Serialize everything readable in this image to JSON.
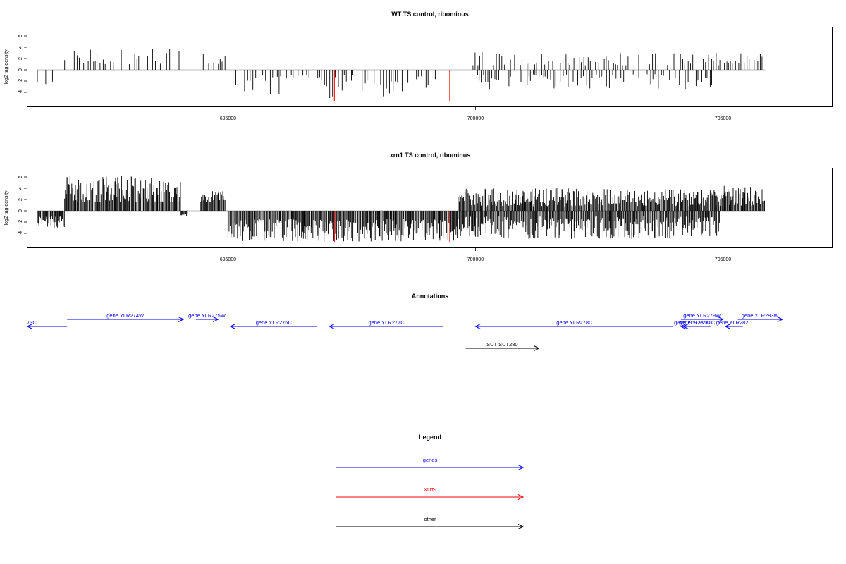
{
  "colors": {
    "gene": "#0000ff",
    "xut": "#ff0000",
    "other": "#000000",
    "positive_bar": "#000000",
    "negative_bar": "#000000",
    "highlight_bar": "#ff0000",
    "baseline": "#bebebe"
  },
  "chart_data": [
    {
      "type": "bar",
      "title": "WT TS control, ribominus",
      "ylabel": "log2 tag density",
      "xlim": [
        690950,
        707200
      ],
      "ylim": [
        -6.5,
        7.5
      ],
      "yticks": [
        -4,
        -2,
        0,
        2,
        4,
        6
      ],
      "xticks": [
        695000,
        700000,
        705000
      ],
      "xtick_labels": [
        "695000",
        "700000",
        "705000"
      ],
      "density": "sparse",
      "segments": [
        {
          "start": 691150,
          "end": 691500,
          "strand": "-",
          "min": 1.0,
          "max": 3.0
        },
        {
          "start": 691700,
          "end": 694050,
          "strand": "+",
          "min": 1.0,
          "max": 4.0
        },
        {
          "start": 694050,
          "end": 694200,
          "strand": "-",
          "min": 0.5,
          "max": 1.2
        },
        {
          "start": 694500,
          "end": 694950,
          "strand": "+",
          "min": 1.0,
          "max": 3.2
        },
        {
          "start": 695000,
          "end": 699200,
          "strand": "-",
          "min": 1.0,
          "max": 5.0
        },
        {
          "start": 699950,
          "end": 704950,
          "strand": "+",
          "min": 0.8,
          "max": 3.2
        },
        {
          "start": 699950,
          "end": 704950,
          "strand": "-",
          "min": 0.8,
          "max": 3.5
        },
        {
          "start": 705000,
          "end": 705850,
          "strand": "+",
          "min": 1.0,
          "max": 3.0
        }
      ],
      "highlights": [
        {
          "x": 697150,
          "y": -5.5
        },
        {
          "x": 699480,
          "y": -5.5
        }
      ]
    },
    {
      "type": "bar",
      "title": "xrn1 TS control, ribominus",
      "ylabel": "log2 tag density",
      "xlim": [
        690950,
        707200
      ],
      "ylim": [
        -6.5,
        7.5
      ],
      "yticks": [
        -4,
        -2,
        0,
        2,
        4,
        6
      ],
      "xticks": [
        695000,
        700000,
        705000
      ],
      "xtick_labels": [
        "695000",
        "700000",
        "705000"
      ],
      "density": "dense",
      "segments": [
        {
          "start": 691150,
          "end": 691700,
          "strand": "-",
          "min": 1.0,
          "max": 3.0
        },
        {
          "start": 691700,
          "end": 694050,
          "strand": "+",
          "min": 1.5,
          "max": 6.2
        },
        {
          "start": 694050,
          "end": 694200,
          "strand": "-",
          "min": 0.5,
          "max": 1.0
        },
        {
          "start": 694450,
          "end": 694950,
          "strand": "+",
          "min": 1.5,
          "max": 3.5
        },
        {
          "start": 695000,
          "end": 699650,
          "strand": "-",
          "min": 1.5,
          "max": 5.5
        },
        {
          "start": 699650,
          "end": 704950,
          "strand": "+",
          "min": 0.8,
          "max": 4.0
        },
        {
          "start": 699650,
          "end": 704950,
          "strand": "-",
          "min": 1.0,
          "max": 5.0
        },
        {
          "start": 704950,
          "end": 705850,
          "strand": "+",
          "min": 0.8,
          "max": 4.5
        }
      ],
      "highlights": [
        {
          "x": 697150,
          "y": -5.5
        },
        {
          "x": 699480,
          "y": -5.5
        }
      ]
    }
  ],
  "annotations": {
    "title": "Annotations",
    "xlim": [
      690950,
      707200
    ],
    "items": [
      {
        "label": "73C",
        "start": 690950,
        "end": 691750,
        "strand": "-",
        "kind": "gene",
        "row": 1
      },
      {
        "label": "gene YLR274W",
        "start": 691750,
        "end": 694100,
        "strand": "+",
        "kind": "gene",
        "row": 0
      },
      {
        "label": "gene YLR275W",
        "start": 694350,
        "end": 694800,
        "strand": "+",
        "kind": "gene",
        "row": 0
      },
      {
        "label": "gene YLR276C",
        "start": 695050,
        "end": 696800,
        "strand": "-",
        "kind": "gene",
        "row": 1
      },
      {
        "label": "gene YLR277C",
        "start": 697050,
        "end": 699350,
        "strand": "-",
        "kind": "gene",
        "row": 1
      },
      {
        "label": "gene YLR278C",
        "start": 700000,
        "end": 704000,
        "strand": "-",
        "kind": "gene",
        "row": 1
      },
      {
        "label": "gene YLR279W",
        "start": 704150,
        "end": 705000,
        "strand": "+",
        "kind": "gene",
        "row": 0
      },
      {
        "label": "gene YLR280C",
        "start": 704150,
        "end": 704600,
        "strand": "-",
        "kind": "gene",
        "row": 2
      },
      {
        "label": "gene YLR281C",
        "start": 704200,
        "end": 704750,
        "strand": "-",
        "kind": "gene",
        "row": 2
      },
      {
        "label": "gene YLR282C",
        "start": 705050,
        "end": 705400,
        "strand": "-",
        "kind": "gene",
        "row": 2
      },
      {
        "label": "gene YLR283W",
        "start": 705300,
        "end": 706200,
        "strand": "+",
        "kind": "gene",
        "row": 0
      },
      {
        "label": "SUT SUT280",
        "start": 699800,
        "end": 701280,
        "strand": "+",
        "kind": "other",
        "row": 3
      }
    ]
  },
  "legend": {
    "title": "Legend",
    "items": [
      {
        "label": "genes",
        "kind": "gene"
      },
      {
        "label": "XUTs",
        "kind": "xut"
      },
      {
        "label": "other",
        "kind": "other"
      }
    ]
  }
}
